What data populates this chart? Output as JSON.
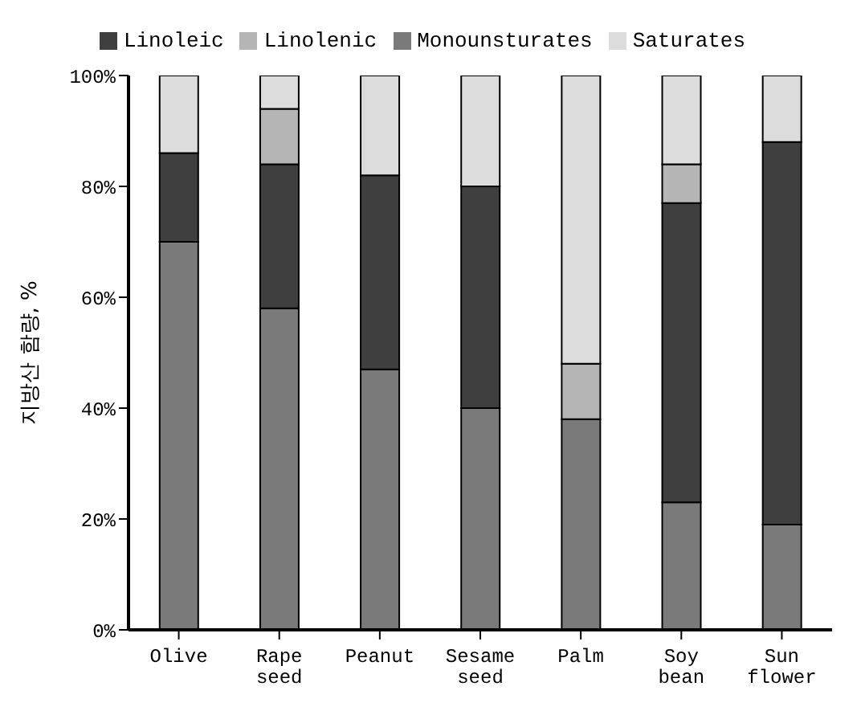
{
  "chart_data": {
    "type": "bar",
    "stacked": true,
    "ylabel": "지방산 함량, %",
    "legend": "top",
    "grid": false,
    "categories": [
      "Olive",
      "Rape seed",
      "Peanut",
      "Sesame seed",
      "Palm",
      "Soy bean",
      "Sun flower"
    ],
    "series": [
      {
        "name": "Monounsturates",
        "color": "#7a7a7a",
        "values": [
          70,
          58,
          47,
          40,
          38,
          23,
          19
        ]
      },
      {
        "name": "Linoleic",
        "color": "#3f3f3f",
        "values": [
          16,
          26,
          35,
          40,
          0,
          54,
          69
        ]
      },
      {
        "name": "Linolenic",
        "color": "#b5b5b5",
        "values": [
          0,
          10,
          0,
          0,
          10,
          7,
          0
        ]
      },
      {
        "name": "Saturates",
        "color": "#dcdcdc",
        "values": [
          14,
          6,
          18,
          20,
          52,
          16,
          12
        ]
      }
    ],
    "ylim": [
      0,
      100
    ],
    "yticks": [
      {
        "value": 0,
        "label": "0%"
      },
      {
        "value": 20,
        "label": "20%"
      },
      {
        "value": 40,
        "label": "40%"
      },
      {
        "value": 60,
        "label": "60%"
      },
      {
        "value": 80,
        "label": "80%"
      },
      {
        "value": 100,
        "label": "100%"
      }
    ]
  }
}
